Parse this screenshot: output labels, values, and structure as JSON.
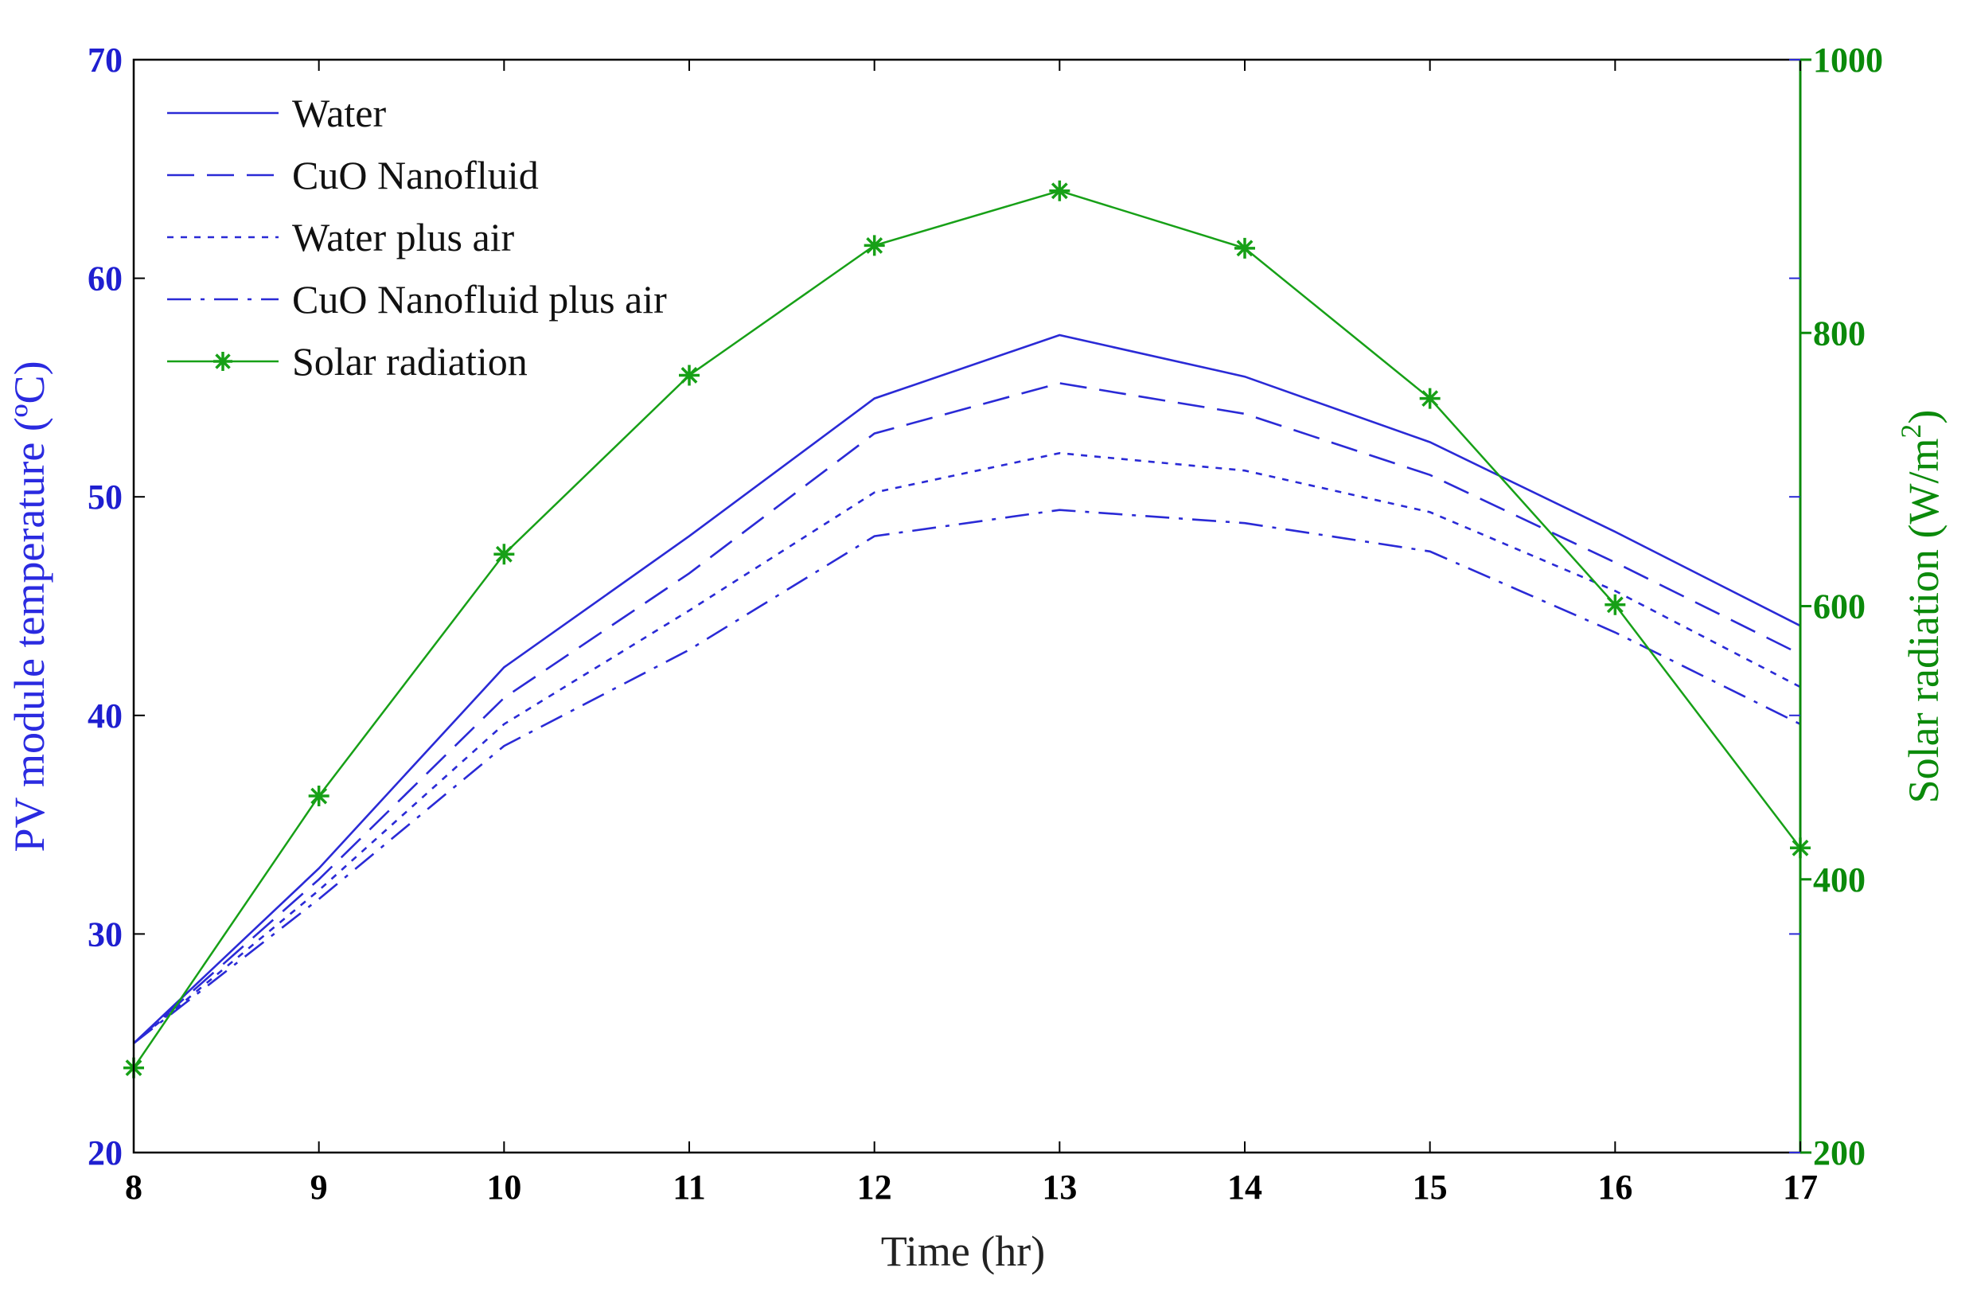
{
  "chart_data": {
    "type": "line",
    "title": "",
    "xlabel": "Time (hr)",
    "ylabel": "PV module temperature (ºC)",
    "ylabel_right_base": "Solar radiation (W/m",
    "ylabel_right_sup": "2",
    "ylabel_right_close": ")",
    "x": [
      8,
      9,
      10,
      11,
      12,
      13,
      14,
      15,
      16,
      17
    ],
    "xlim": [
      8,
      17
    ],
    "ylim": [
      20,
      70
    ],
    "ylim_right": [
      200,
      1000
    ],
    "x_ticks": [
      "8",
      "9",
      "10",
      "11",
      "12",
      "13",
      "14",
      "15",
      "16",
      "17"
    ],
    "y_ticks_left": [
      "20",
      "30",
      "40",
      "50",
      "60",
      "70"
    ],
    "y_ticks_right": [
      "200",
      "400",
      "600",
      "800",
      "1000"
    ],
    "legend_position": "top-left",
    "series": [
      {
        "name": "Water",
        "axis": "left",
        "style": "solid",
        "color": "#2a2ad6",
        "values": [
          25.0,
          33.0,
          42.2,
          48.2,
          54.5,
          57.4,
          55.5,
          52.5,
          48.4,
          44.1
        ]
      },
      {
        "name": "CuO Nanofluid",
        "axis": "left",
        "style": "dashed",
        "color": "#2a2ad6",
        "values": [
          25.0,
          32.5,
          40.8,
          46.5,
          52.9,
          55.2,
          53.8,
          51.0,
          47.0,
          42.8
        ]
      },
      {
        "name": "Water plus air",
        "axis": "left",
        "style": "dotted",
        "color": "#2a2ad6",
        "values": [
          25.0,
          32.0,
          39.6,
          44.8,
          50.2,
          52.0,
          51.2,
          49.3,
          45.7,
          41.3
        ]
      },
      {
        "name": "CuO Nanofluid plus air",
        "axis": "left",
        "style": "dashdot",
        "color": "#2a2ad6",
        "values": [
          25.0,
          31.6,
          38.6,
          43.0,
          48.2,
          49.4,
          48.8,
          47.5,
          43.8,
          39.6
        ]
      },
      {
        "name": "Solar radiation",
        "axis": "right",
        "style": "solid-star",
        "color": "#17a017",
        "values": [
          262,
          461,
          638,
          769,
          864,
          904,
          862,
          752,
          601,
          423
        ]
      }
    ]
  }
}
